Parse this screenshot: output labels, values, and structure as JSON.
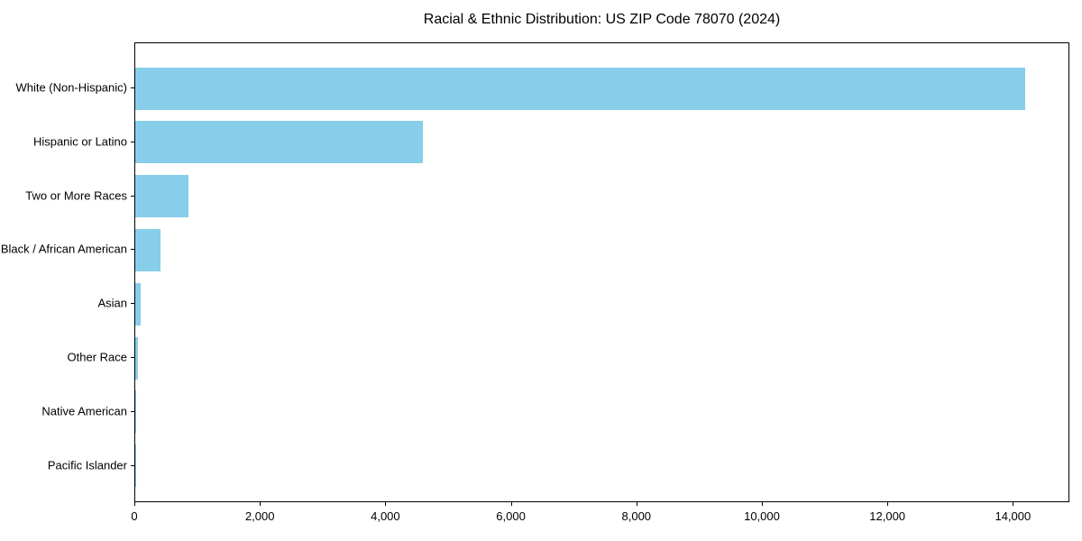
{
  "title": "Racial & Ethnic Distribution: US ZIP Code 78070 (2024)",
  "colors": {
    "bar": "#87CEEB",
    "spine": "#000000",
    "text": "#000000",
    "background": "#ffffff"
  },
  "chart_data": {
    "type": "bar",
    "orientation": "horizontal",
    "title": "Racial & Ethnic Distribution: US ZIP Code 78070 (2024)",
    "categories": [
      "White (Non-Hispanic)",
      "Hispanic or Latino",
      "Two or More Races",
      "Black / African American",
      "Asian",
      "Other Race",
      "Native American",
      "Pacific Islander"
    ],
    "values": [
      14180,
      4580,
      845,
      405,
      90,
      38,
      15,
      3
    ],
    "xlabel": "",
    "ylabel": "",
    "xlim": [
      0,
      14900
    ],
    "x_ticks": [
      0,
      2000,
      4000,
      6000,
      8000,
      10000,
      12000,
      14000
    ],
    "x_tick_labels": [
      "0",
      "2,000",
      "4,000",
      "6,000",
      "8,000",
      "10,000",
      "12,000",
      "14,000"
    ],
    "bar_color": "#87CEEB",
    "grid": false,
    "legend": "none"
  }
}
